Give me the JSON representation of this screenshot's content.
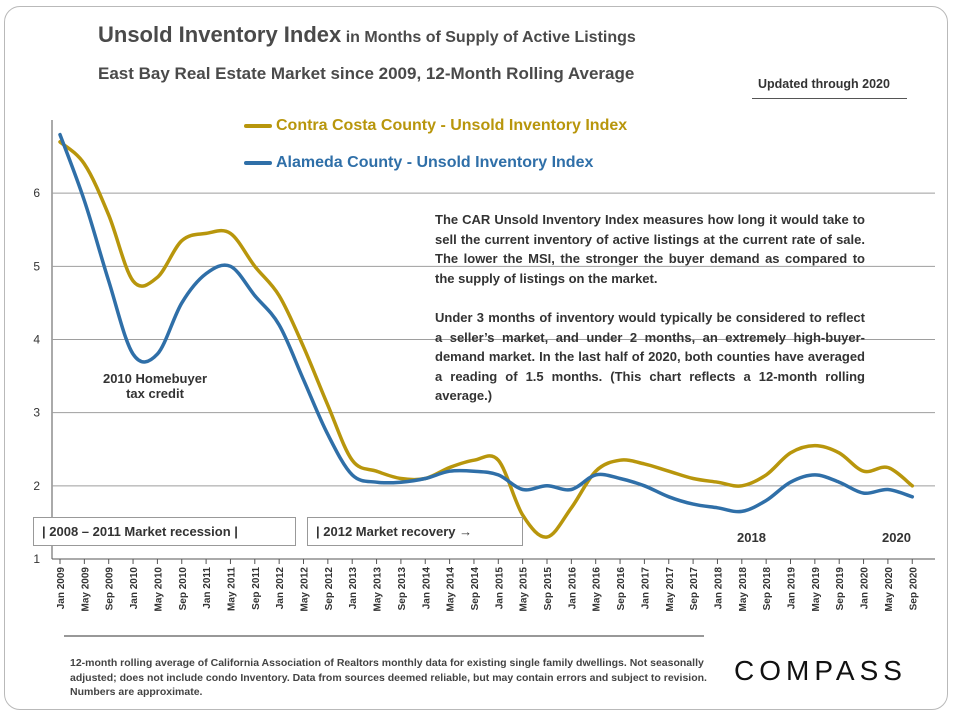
{
  "header": {
    "title_main": "Unsold Inventory Index",
    "title_sub": "in Months of Supply of Active Listings",
    "subtitle": "East Bay Real Estate Market since 2009, 12-Month Rolling Average",
    "updated": "Updated through 2020"
  },
  "description": {
    "para1": "The CAR Unsold Inventory Index measures how long it would take to sell the current inventory of active listings at the current rate of sale. The lower the MSI, the stronger the buyer demand as compared to the supply of listings on the market.",
    "para2": "Under 3 months of inventory would typically be considered to reflect a seller’s market, and under 2 months, an extremely high-buyer-demand market. In the last half of 2020, both counties have averaged a reading of 1.5 months. (This chart reflects a 12-month rolling average.)"
  },
  "annotations": {
    "homebuyer": "2010 Homebuyer",
    "taxcredit": "tax credit",
    "recession": "|   2008 – 2011 Market recession   |",
    "recovery": "| 2012 Market recovery →",
    "year2018": "2018",
    "year2020": "2020"
  },
  "footnote": "12-month rolling average of California Association of Realtors monthly data for existing single family dwellings. Not seasonally adjusted; does not include condo Inventory. Data from sources deemed reliable, but may contain errors and subject to revision. Numbers are approximate.",
  "brand": "COMPASS",
  "colors": {
    "contra_costa": "#b8960c",
    "alameda": "#2f6fa8",
    "grid": "#9e9e9e"
  },
  "chart_data": {
    "type": "line",
    "title": "Unsold Inventory Index in Months of Supply of Active Listings",
    "xlabel": "",
    "ylabel": "",
    "ylim": [
      1,
      7
    ],
    "yticks": [
      1,
      2,
      3,
      4,
      5,
      6
    ],
    "grid": true,
    "legend_position": "top-left",
    "x_ticks": [
      "Jan 2009",
      "May 2009",
      "Sep 2009",
      "Jan 2010",
      "May 2010",
      "Sep 2010",
      "Jan 2011",
      "May 2011",
      "Sep 2011",
      "Jan 2012",
      "May 2012",
      "Sep 2012",
      "Jan 2013",
      "May 2013",
      "Sep 2013",
      "Jan 2014",
      "May 2014",
      "Sep 2014",
      "Jan 2015",
      "May 2015",
      "Sep 2015",
      "Jan 2016",
      "May 2016",
      "Sep 2016",
      "Jan 2017",
      "May 2017",
      "Sep 2017",
      "Jan 2018",
      "May 2018",
      "Sep 2018",
      "Jan 2019",
      "May 2019",
      "Sep 2019",
      "Jan 2020",
      "May 2020",
      "Sep 2020"
    ],
    "series": [
      {
        "name": "Contra Costa County - Unsold Inventory Index",
        "values": [
          6.7,
          6.4,
          5.7,
          4.8,
          4.85,
          5.35,
          5.45,
          5.45,
          5.0,
          4.6,
          3.9,
          3.1,
          2.35,
          2.2,
          2.1,
          2.1,
          2.25,
          2.35,
          2.35,
          1.6,
          1.3,
          1.7,
          2.2,
          2.35,
          2.3,
          2.2,
          2.1,
          2.05,
          2.0,
          2.15,
          2.45,
          2.55,
          2.45,
          2.2,
          2.25,
          2.0
        ]
      },
      {
        "name": "Alameda County - Unsold Inventory Index",
        "values": [
          6.8,
          5.9,
          4.8,
          3.8,
          3.8,
          4.5,
          4.9,
          5.0,
          4.6,
          4.2,
          3.45,
          2.7,
          2.15,
          2.05,
          2.05,
          2.1,
          2.2,
          2.2,
          2.15,
          1.95,
          2.0,
          1.95,
          2.15,
          2.1,
          2.0,
          1.85,
          1.75,
          1.7,
          1.65,
          1.8,
          2.05,
          2.15,
          2.05,
          1.9,
          1.95,
          1.85
        ]
      }
    ]
  }
}
